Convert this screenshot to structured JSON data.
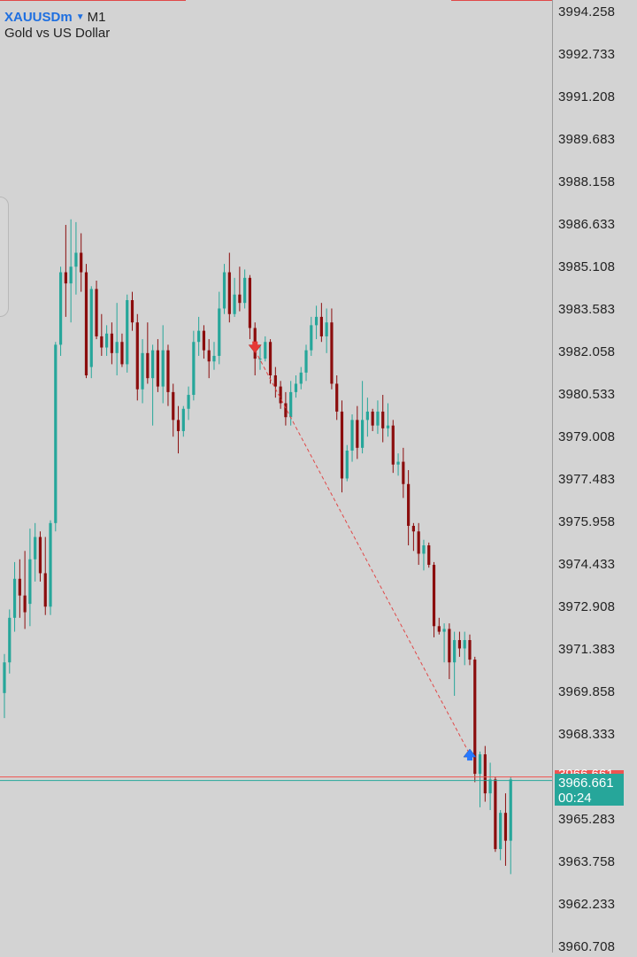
{
  "symbol": {
    "name": "XAUUSDm",
    "timeframe": "M1",
    "description": "Gold vs US Dollar"
  },
  "current": {
    "price": "3966.661",
    "countdown": "00:24",
    "bid_partial": "3966.661"
  },
  "colors": {
    "bull": "#26a69a",
    "bear": "#8b0d0d",
    "background": "#d3d3d3",
    "ask_line": "#ef5350",
    "bid_line": "#26a69a"
  },
  "chart_data": {
    "type": "candlestick",
    "y_ticks": [
      "3994.258",
      "3992.733",
      "3991.208",
      "3989.683",
      "3988.158",
      "3986.633",
      "3985.108",
      "3983.583",
      "3982.058",
      "3980.533",
      "3979.008",
      "3977.483",
      "3975.958",
      "3974.433",
      "3972.908",
      "3971.383",
      "3969.858",
      "3968.333",
      "3965.283",
      "3963.758",
      "3962.233",
      "3960.708"
    ],
    "ylim": [
      3960.5,
      3994.7
    ],
    "ohlc": [
      [
        3969.8,
        3971.2,
        3968.9,
        3970.9
      ],
      [
        3970.9,
        3972.8,
        3970.5,
        3972.5
      ],
      [
        3972.5,
        3974.5,
        3972.0,
        3973.9
      ],
      [
        3973.9,
        3974.6,
        3972.5,
        3973.3
      ],
      [
        3973.3,
        3974.9,
        3972.1,
        3972.7
      ],
      [
        3973.0,
        3975.7,
        3972.2,
        3974.6
      ],
      [
        3974.6,
        3975.9,
        3973.8,
        3975.4
      ],
      [
        3975.4,
        3975.6,
        3973.8,
        3974.1
      ],
      [
        3974.1,
        3975.4,
        3972.6,
        3972.9
      ],
      [
        3972.9,
        3976.0,
        3972.6,
        3975.9
      ],
      [
        3975.9,
        3982.4,
        3975.6,
        3982.3
      ],
      [
        3982.3,
        3985.1,
        3981.9,
        3984.9
      ],
      [
        3984.9,
        3986.6,
        3983.3,
        3984.5
      ],
      [
        3984.5,
        3986.8,
        3983.1,
        3985.1
      ],
      [
        3985.1,
        3986.7,
        3984.1,
        3985.6
      ],
      [
        3985.6,
        3986.3,
        3984.2,
        3984.9
      ],
      [
        3984.9,
        3985.2,
        3981.1,
        3981.2
      ],
      [
        3981.5,
        3984.4,
        3981.1,
        3984.3
      ],
      [
        3984.3,
        3984.6,
        3982.5,
        3982.6
      ],
      [
        3982.6,
        3983.4,
        3981.9,
        3982.2
      ],
      [
        3982.2,
        3983.0,
        3981.9,
        3982.7
      ],
      [
        3982.7,
        3983.1,
        3981.6,
        3982.0
      ],
      [
        3982.0,
        3983.8,
        3981.2,
        3982.4
      ],
      [
        3982.4,
        3982.7,
        3981.5,
        3981.6
      ],
      [
        3981.6,
        3984.1,
        3981.3,
        3983.9
      ],
      [
        3983.9,
        3984.2,
        3982.8,
        3983.1
      ],
      [
        3983.1,
        3983.4,
        3980.3,
        3980.7
      ],
      [
        3980.7,
        3982.5,
        3980.2,
        3982.0
      ],
      [
        3982.0,
        3983.1,
        3980.9,
        3981.1
      ],
      [
        3981.1,
        3982.3,
        3979.4,
        3982.1
      ],
      [
        3982.1,
        3982.5,
        3980.6,
        3980.8
      ],
      [
        3980.8,
        3983.0,
        3980.2,
        3982.1
      ],
      [
        3982.1,
        3982.3,
        3980.1,
        3980.6
      ],
      [
        3980.6,
        3980.9,
        3979.0,
        3979.6
      ],
      [
        3979.6,
        3980.1,
        3978.4,
        3979.2
      ],
      [
        3979.2,
        3980.1,
        3979.0,
        3980.0
      ],
      [
        3980.0,
        3980.8,
        3979.6,
        3980.5
      ],
      [
        3980.5,
        3982.8,
        3980.3,
        3982.4
      ],
      [
        3982.4,
        3983.3,
        3981.9,
        3982.8
      ],
      [
        3982.8,
        3983.0,
        3981.8,
        3982.1
      ],
      [
        3982.1,
        3982.5,
        3981.1,
        3981.7
      ],
      [
        3981.7,
        3982.4,
        3981.4,
        3981.9
      ],
      [
        3981.9,
        3984.2,
        3981.6,
        3983.6
      ],
      [
        3983.6,
        3985.2,
        3983.4,
        3984.9
      ],
      [
        3984.9,
        3985.6,
        3983.1,
        3983.4
      ],
      [
        3983.4,
        3984.7,
        3983.3,
        3984.1
      ],
      [
        3984.1,
        3985.1,
        3983.5,
        3983.8
      ],
      [
        3983.8,
        3985.0,
        3983.6,
        3984.7
      ],
      [
        3984.7,
        3984.8,
        3982.5,
        3982.9
      ],
      [
        3982.9,
        3983.1,
        3981.2,
        3981.8
      ],
      [
        3981.8,
        3982.3,
        3981.4,
        3981.8
      ],
      [
        3981.8,
        3982.6,
        3981.7,
        3982.4
      ],
      [
        3982.4,
        3982.5,
        3980.9,
        3981.2
      ],
      [
        3981.2,
        3981.5,
        3980.4,
        3980.8
      ],
      [
        3980.8,
        3981.0,
        3980.0,
        3980.2
      ],
      [
        3980.2,
        3980.6,
        3979.4,
        3979.7
      ],
      [
        3979.7,
        3981.0,
        3979.4,
        3980.6
      ],
      [
        3980.6,
        3981.2,
        3980.4,
        3980.9
      ],
      [
        3980.9,
        3981.5,
        3980.7,
        3981.3
      ],
      [
        3981.3,
        3982.3,
        3981.0,
        3982.1
      ],
      [
        3982.1,
        3983.3,
        3981.9,
        3983.0
      ],
      [
        3983.0,
        3983.7,
        3982.5,
        3983.3
      ],
      [
        3983.3,
        3983.8,
        3982.4,
        3982.6
      ],
      [
        3982.6,
        3983.6,
        3982.0,
        3983.1
      ],
      [
        3983.1,
        3983.6,
        3980.7,
        3980.9
      ],
      [
        3980.9,
        3981.2,
        3979.6,
        3979.9
      ],
      [
        3979.9,
        3980.3,
        3977.0,
        3977.5
      ],
      [
        3977.5,
        3978.7,
        3977.4,
        3978.5
      ],
      [
        3978.5,
        3979.8,
        3978.1,
        3979.6
      ],
      [
        3979.6,
        3980.1,
        3978.2,
        3978.6
      ],
      [
        3978.6,
        3981.0,
        3978.4,
        3979.6
      ],
      [
        3979.6,
        3980.4,
        3979.0,
        3979.9
      ],
      [
        3979.9,
        3980.0,
        3979.2,
        3979.4
      ],
      [
        3979.4,
        3980.3,
        3979.1,
        3979.9
      ],
      [
        3979.9,
        3980.5,
        3978.8,
        3979.3
      ],
      [
        3979.3,
        3980.2,
        3979.0,
        3979.4
      ],
      [
        3979.4,
        3979.6,
        3977.7,
        3978.0
      ],
      [
        3978.0,
        3978.4,
        3977.6,
        3978.1
      ],
      [
        3978.1,
        3978.6,
        3976.8,
        3977.3
      ],
      [
        3977.3,
        3977.8,
        3975.1,
        3975.8
      ],
      [
        3975.8,
        3975.9,
        3974.9,
        3975.6
      ],
      [
        3975.6,
        3975.9,
        3974.4,
        3974.8
      ],
      [
        3974.8,
        3975.3,
        3974.2,
        3975.1
      ],
      [
        3975.1,
        3975.2,
        3974.3,
        3974.4
      ],
      [
        3974.4,
        3974.5,
        3971.8,
        3972.2
      ],
      [
        3972.2,
        3972.5,
        3971.9,
        3972.0
      ],
      [
        3972.0,
        3972.3,
        3970.9,
        3972.1
      ],
      [
        3972.1,
        3972.3,
        3970.3,
        3970.9
      ],
      [
        3970.9,
        3972.0,
        3969.7,
        3971.7
      ],
      [
        3971.7,
        3972.0,
        3971.1,
        3971.4
      ],
      [
        3971.4,
        3972.0,
        3970.8,
        3971.7
      ],
      [
        3971.7,
        3971.9,
        3970.8,
        3971.0
      ],
      [
        3971.0,
        3971.1,
        3966.6,
        3966.9
      ],
      [
        3966.9,
        3967.7,
        3965.7,
        3967.6
      ],
      [
        3967.6,
        3967.9,
        3965.9,
        3966.2
      ],
      [
        3966.2,
        3967.3,
        3965.6,
        3966.7
      ],
      [
        3966.7,
        3966.8,
        3964.1,
        3964.2
      ],
      [
        3964.2,
        3965.6,
        3963.8,
        3965.5
      ],
      [
        3965.5,
        3966.2,
        3963.6,
        3964.5
      ],
      [
        3964.5,
        3966.8,
        3963.3,
        3966.7
      ]
    ],
    "trades": [
      {
        "type": "sell",
        "index": 49,
        "price": 3982.1
      },
      {
        "type": "buy",
        "index": 91,
        "price": 3967.6
      }
    ]
  }
}
